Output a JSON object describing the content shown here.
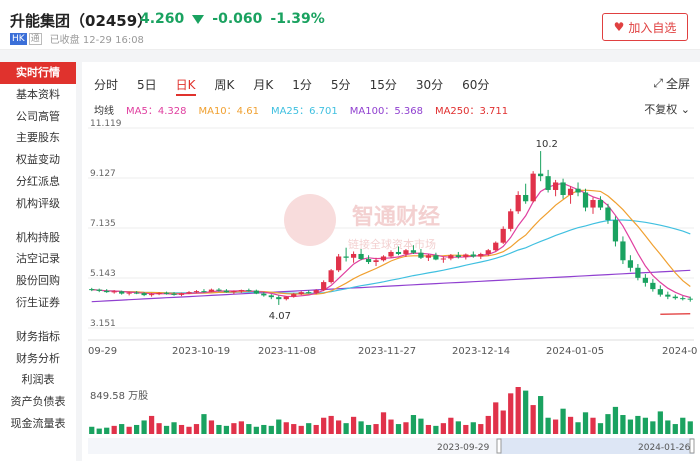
{
  "header": {
    "name": "升能集团（02459）",
    "price": "4.260",
    "change": "-0.060",
    "change_pct": "-1.39%",
    "market_badge": "HK",
    "connect_badge": "通",
    "status": "已收盘 12-29 16:08",
    "watch_label": "加入自选",
    "watch_icon": "heart-icon"
  },
  "sidebar": {
    "items": [
      "实时行情",
      "基本资料",
      "公司高管",
      "主要股东",
      "权益变动",
      "分红派息",
      "机构评级",
      "机构持股",
      "沽空记录",
      "股份回购",
      "衍生证券",
      "财务指标",
      "财务分析",
      "利润表",
      "资产负债表",
      "现金流量表"
    ],
    "active": "实时行情"
  },
  "tabs": {
    "items": [
      "分时",
      "5日",
      "日K",
      "周K",
      "月K",
      "1分",
      "5分",
      "15分",
      "30分",
      "60分"
    ],
    "active": "日K",
    "fullscreen": "全屏"
  },
  "ma": {
    "title": "均线",
    "ma5": "MA5：4.328",
    "ma10": "MA10：4.61",
    "ma25": "MA25：6.701",
    "ma100": "MA100：5.368",
    "ma250": "MA250：3.711",
    "adjust": "不复权"
  },
  "colors": {
    "ma5": "#e040a0",
    "ma10": "#f0a030",
    "ma25": "#40c0e0",
    "ma100": "#9040d0",
    "ma250": "#e03030",
    "up": "#e0324a",
    "down": "#1aa260"
  },
  "watermark": {
    "brand": "智通财经",
    "slogan": "链接全球资本市场"
  },
  "chart_data": {
    "type": "candlestick",
    "y_ticks": [
      "11.119",
      "9.127",
      "7.135",
      "5.143",
      "3.151"
    ],
    "ylim": [
      3.151,
      11.119
    ],
    "x_ticks": [
      "09-29",
      "2023-10-19",
      "2023-11-08",
      "2023-11-27",
      "2023-12-14",
      "2024-01-05",
      "2024-0"
    ],
    "annotations": {
      "high": "10.2",
      "low": "4.07"
    },
    "volume_label": "849.58 万股",
    "navigator": {
      "start": "2023-09-29",
      "end": "2024-01-26"
    },
    "candles": [
      [
        4.7,
        4.75,
        4.62,
        4.68
      ],
      [
        4.68,
        4.72,
        4.58,
        4.63
      ],
      [
        4.63,
        4.7,
        4.55,
        4.58
      ],
      [
        4.58,
        4.66,
        4.52,
        4.61
      ],
      [
        4.61,
        4.64,
        4.48,
        4.52
      ],
      [
        4.52,
        4.6,
        4.45,
        4.56
      ],
      [
        4.56,
        4.62,
        4.5,
        4.54
      ],
      [
        4.54,
        4.58,
        4.42,
        4.46
      ],
      [
        4.46,
        4.55,
        4.4,
        4.5
      ],
      [
        4.5,
        4.58,
        4.46,
        4.55
      ],
      [
        4.55,
        4.6,
        4.48,
        4.52
      ],
      [
        4.52,
        4.58,
        4.44,
        4.47
      ],
      [
        4.47,
        4.56,
        4.42,
        4.53
      ],
      [
        4.53,
        4.62,
        4.5,
        4.58
      ],
      [
        4.58,
        4.66,
        4.54,
        4.62
      ],
      [
        4.62,
        4.7,
        4.56,
        4.6
      ],
      [
        4.6,
        4.72,
        4.58,
        4.68
      ],
      [
        4.68,
        4.74,
        4.6,
        4.64
      ],
      [
        4.64,
        4.7,
        4.56,
        4.58
      ],
      [
        4.58,
        4.65,
        4.5,
        4.62
      ],
      [
        4.62,
        4.68,
        4.55,
        4.66
      ],
      [
        4.66,
        4.72,
        4.6,
        4.64
      ],
      [
        4.64,
        4.68,
        4.5,
        4.52
      ],
      [
        4.52,
        4.58,
        4.4,
        4.45
      ],
      [
        4.45,
        4.5,
        4.3,
        4.38
      ],
      [
        4.38,
        4.45,
        4.07,
        4.3
      ],
      [
        4.3,
        4.42,
        4.25,
        4.4
      ],
      [
        4.4,
        4.55,
        4.36,
        4.5
      ],
      [
        4.5,
        4.62,
        4.46,
        4.58
      ],
      [
        4.58,
        4.66,
        4.52,
        4.55
      ],
      [
        4.55,
        4.7,
        4.5,
        4.66
      ],
      [
        4.66,
        5.05,
        4.62,
        4.98
      ],
      [
        4.98,
        5.5,
        4.92,
        5.45
      ],
      [
        5.45,
        6.1,
        5.38,
        6.0
      ],
      [
        6.0,
        6.35,
        5.8,
        5.95
      ],
      [
        5.95,
        6.2,
        5.75,
        6.1
      ],
      [
        6.1,
        6.3,
        5.85,
        5.9
      ],
      [
        5.9,
        6.05,
        5.7,
        5.78
      ],
      [
        5.78,
        5.95,
        5.62,
        5.85
      ],
      [
        5.85,
        6.05,
        5.8,
        6.0
      ],
      [
        6.0,
        6.25,
        5.95,
        6.18
      ],
      [
        6.18,
        6.4,
        6.05,
        6.1
      ],
      [
        6.1,
        6.3,
        5.98,
        6.25
      ],
      [
        6.25,
        6.45,
        6.1,
        6.15
      ],
      [
        6.15,
        6.3,
        5.9,
        5.95
      ],
      [
        5.95,
        6.1,
        5.82,
        6.05
      ],
      [
        6.05,
        6.15,
        5.85,
        5.88
      ],
      [
        5.88,
        6.0,
        5.75,
        5.92
      ],
      [
        5.92,
        6.1,
        5.85,
        6.05
      ],
      [
        6.05,
        6.18,
        5.92,
        5.98
      ],
      [
        5.98,
        6.12,
        5.88,
        6.08
      ],
      [
        6.08,
        6.2,
        5.95,
        6.0
      ],
      [
        6.0,
        6.15,
        5.9,
        6.1
      ],
      [
        6.1,
        6.3,
        6.02,
        6.25
      ],
      [
        6.25,
        6.6,
        6.2,
        6.55
      ],
      [
        6.55,
        7.2,
        6.5,
        7.1
      ],
      [
        7.1,
        7.9,
        7.0,
        7.8
      ],
      [
        7.8,
        8.6,
        7.7,
        8.45
      ],
      [
        8.45,
        8.9,
        8.1,
        8.2
      ],
      [
        8.2,
        9.4,
        8.15,
        9.3
      ],
      [
        9.3,
        10.2,
        9.0,
        9.2
      ],
      [
        9.2,
        9.45,
        8.55,
        8.65
      ],
      [
        8.65,
        9.05,
        8.4,
        8.95
      ],
      [
        8.95,
        9.1,
        8.3,
        8.45
      ],
      [
        8.45,
        8.8,
        8.1,
        8.7
      ],
      [
        8.7,
        8.95,
        8.4,
        8.55
      ],
      [
        8.55,
        8.7,
        7.8,
        7.95
      ],
      [
        7.95,
        8.35,
        7.7,
        8.25
      ],
      [
        8.25,
        8.4,
        7.85,
        7.95
      ],
      [
        7.95,
        8.1,
        7.3,
        7.45
      ],
      [
        7.45,
        7.6,
        6.4,
        6.6
      ],
      [
        6.6,
        6.8,
        5.7,
        5.85
      ],
      [
        5.85,
        6.05,
        5.4,
        5.55
      ],
      [
        5.55,
        5.7,
        5.05,
        5.15
      ],
      [
        5.15,
        5.3,
        4.8,
        4.95
      ],
      [
        4.95,
        5.1,
        4.6,
        4.7
      ],
      [
        4.7,
        4.85,
        4.4,
        4.48
      ],
      [
        4.48,
        4.6,
        4.3,
        4.4
      ],
      [
        4.4,
        4.48,
        4.28,
        4.34
      ],
      [
        4.34,
        4.42,
        4.25,
        4.32
      ],
      [
        4.32,
        4.4,
        4.2,
        4.3
      ]
    ],
    "volume": [
      0.8,
      0.6,
      0.7,
      0.9,
      1.1,
      0.8,
      1.0,
      1.5,
      2.0,
      1.2,
      0.9,
      1.3,
      1.0,
      0.8,
      1.1,
      2.2,
      1.5,
      1.0,
      0.9,
      1.2,
      1.4,
      1.1,
      0.8,
      1.0,
      0.9,
      1.6,
      1.3,
      1.1,
      0.9,
      1.2,
      1.0,
      1.8,
      2.0,
      1.5,
      1.2,
      1.9,
      1.4,
      1.0,
      1.1,
      2.4,
      1.6,
      1.1,
      1.3,
      2.1,
      1.7,
      1.0,
      0.9,
      1.2,
      1.8,
      1.4,
      1.0,
      1.3,
      1.1,
      2.0,
      3.5,
      2.6,
      4.5,
      5.2,
      4.8,
      3.2,
      4.2,
      1.8,
      1.6,
      2.8,
      1.9,
      1.3,
      2.4,
      1.8,
      1.2,
      2.2,
      3.0,
      2.1,
      1.6,
      2.0,
      1.8,
      1.4,
      2.5,
      1.5,
      1.1,
      1.8,
      1.4
    ]
  }
}
